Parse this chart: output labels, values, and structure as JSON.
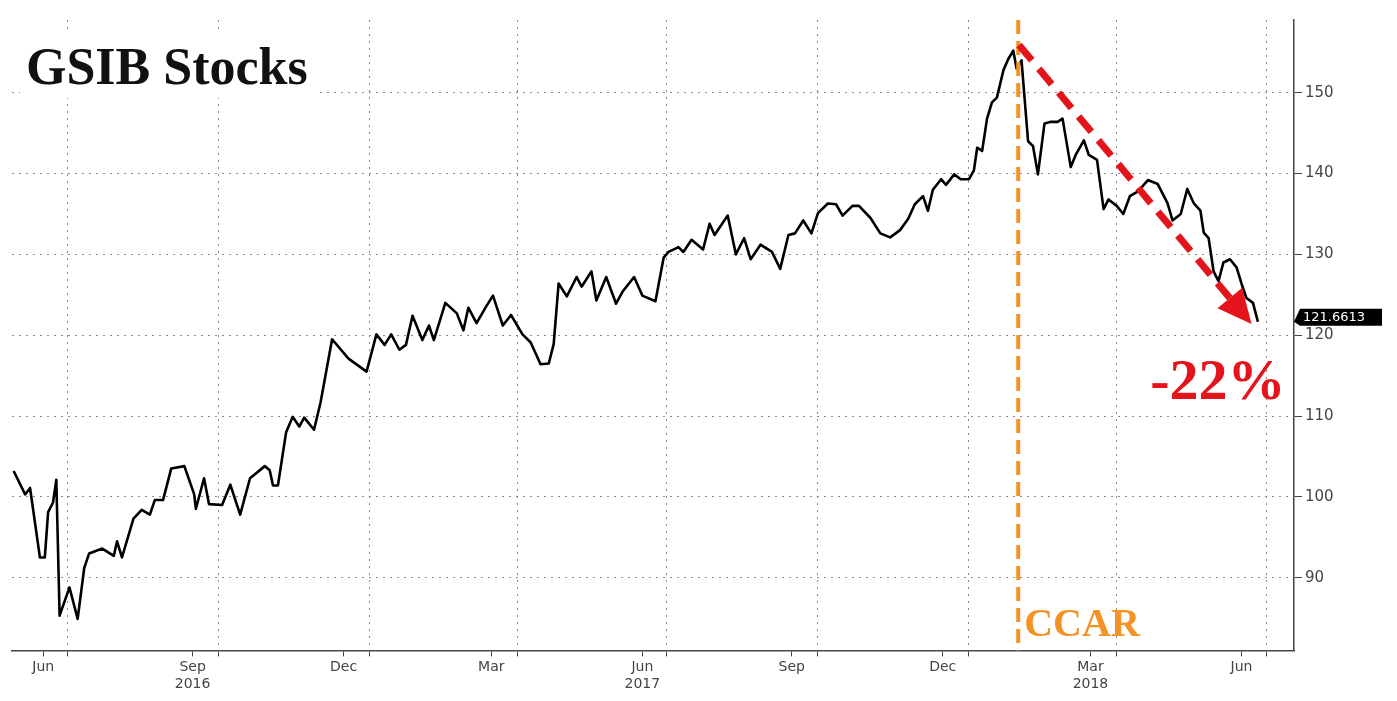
{
  "chart_data": {
    "type": "line",
    "title": "GSIB Stocks",
    "x": [
      "2016-05-29",
      "2016-06-05",
      "2016-06-08",
      "2016-06-14",
      "2016-06-17",
      "2016-06-19",
      "2016-06-22",
      "2016-06-24",
      "2016-06-26",
      "2016-07-02",
      "2016-07-07",
      "2016-07-11",
      "2016-07-14",
      "2016-07-22",
      "2016-07-29",
      "2016-07-31",
      "2016-08-03",
      "2016-08-10",
      "2016-08-15",
      "2016-08-20",
      "2016-08-23",
      "2016-08-28",
      "2016-09-02",
      "2016-09-10",
      "2016-09-16",
      "2016-09-17",
      "2016-09-22",
      "2016-09-25",
      "2016-10-03",
      "2016-10-08",
      "2016-10-14",
      "2016-10-20",
      "2016-10-29",
      "2016-11-01",
      "2016-11-03",
      "2016-11-06",
      "2016-11-11",
      "2016-11-15",
      "2016-11-19",
      "2016-11-22",
      "2016-11-28",
      "2016-12-02",
      "2016-12-09",
      "2016-12-19",
      "2016-12-30",
      "2017-01-05",
      "2017-01-10",
      "2017-01-14",
      "2017-01-19",
      "2017-01-23",
      "2017-01-27",
      "2017-02-02",
      "2017-02-06",
      "2017-02-09",
      "2017-02-16",
      "2017-02-23",
      "2017-02-27",
      "2017-03-02",
      "2017-03-07",
      "2017-03-13",
      "2017-03-17",
      "2017-03-23",
      "2017-03-28",
      "2017-04-04",
      "2017-04-09",
      "2017-04-15",
      "2017-04-20",
      "2017-04-23",
      "2017-04-26",
      "2017-05-01",
      "2017-05-07",
      "2017-05-10",
      "2017-05-16",
      "2017-05-19",
      "2017-05-25",
      "2017-05-31",
      "2017-06-04",
      "2017-06-11",
      "2017-06-16",
      "2017-06-24",
      "2017-06-29",
      "2017-07-02",
      "2017-07-08",
      "2017-07-11",
      "2017-07-16",
      "2017-07-23",
      "2017-07-27",
      "2017-07-30",
      "2017-08-07",
      "2017-08-12",
      "2017-08-17",
      "2017-08-21",
      "2017-08-27",
      "2017-09-03",
      "2017-09-08",
      "2017-09-13",
      "2017-09-17",
      "2017-09-22",
      "2017-09-27",
      "2017-10-01",
      "2017-10-07",
      "2017-10-12",
      "2017-10-16",
      "2017-10-22",
      "2017-10-26",
      "2017-11-02",
      "2017-11-08",
      "2017-11-14",
      "2017-11-20",
      "2017-11-25",
      "2017-11-29",
      "2017-12-04",
      "2017-12-07",
      "2017-12-10",
      "2017-12-15",
      "2017-12-18",
      "2017-12-23",
      "2017-12-27",
      "2018-01-01",
      "2018-01-04",
      "2018-01-06",
      "2018-01-09",
      "2018-01-12",
      "2018-01-15",
      "2018-01-18",
      "2018-01-22",
      "2018-01-25",
      "2018-01-28",
      "2018-01-30",
      "2018-02-02",
      "2018-02-06",
      "2018-02-09",
      "2018-02-12",
      "2018-02-16",
      "2018-02-20",
      "2018-02-24",
      "2018-02-27",
      "2018-03-04",
      "2018-03-07",
      "2018-03-12",
      "2018-03-15",
      "2018-03-20",
      "2018-03-24",
      "2018-03-27",
      "2018-04-01",
      "2018-04-05",
      "2018-04-09",
      "2018-04-14",
      "2018-04-20",
      "2018-04-26",
      "2018-05-02",
      "2018-05-05",
      "2018-05-10",
      "2018-05-14",
      "2018-05-18",
      "2018-05-22",
      "2018-05-24",
      "2018-05-27",
      "2018-05-30",
      "2018-06-02",
      "2018-06-05",
      "2018-06-09",
      "2018-06-13",
      "2018-06-16",
      "2018-06-19",
      "2018-06-23",
      "2018-06-26"
    ],
    "series": [
      {
        "color": "#000000",
        "values": [
          103.2,
          100.3,
          101.1,
          92.5,
          92.5,
          98.1,
          99.3,
          102.1,
          85.3,
          88.8,
          84.9,
          91.2,
          93.0,
          93.6,
          92.7,
          94.5,
          92.5,
          97.3,
          98.4,
          97.8,
          99.6,
          99.6,
          103.5,
          103.8,
          100.3,
          98.5,
          102.3,
          99.1,
          99.0,
          101.5,
          97.8,
          102.3,
          103.8,
          103.3,
          101.4,
          101.4,
          108.0,
          109.9,
          108.7,
          109.8,
          108.3,
          111.7,
          119.5,
          117.1,
          115.5,
          120.1,
          118.8,
          120.1,
          118.2,
          118.8,
          122.4,
          119.4,
          121.2,
          119.4,
          124.0,
          122.7,
          120.6,
          123.4,
          121.5,
          123.6,
          124.9,
          121.2,
          122.5,
          120.1,
          119.1,
          116.4,
          116.5,
          118.9,
          126.4,
          124.8,
          127.2,
          126.0,
          127.9,
          124.3,
          127.2,
          123.9,
          125.4,
          127.2,
          124.9,
          124.2,
          129.6,
          130.3,
          130.9,
          130.3,
          131.8,
          130.6,
          133.8,
          132.4,
          134.8,
          130.0,
          132.0,
          129.4,
          131.2,
          130.3,
          128.2,
          132.4,
          132.6,
          134.2,
          132.6,
          135.1,
          136.3,
          136.2,
          134.8,
          136.0,
          136.0,
          134.5,
          132.6,
          132.1,
          133.0,
          134.4,
          136.2,
          137.2,
          135.4,
          138.0,
          139.3,
          138.6,
          139.9,
          139.3,
          139.3,
          140.4,
          143.2,
          142.8,
          146.8,
          148.8,
          149.4,
          152.8,
          154.2,
          155.2,
          153.0,
          154.0,
          144.0,
          143.4,
          139.9,
          146.2,
          146.4,
          146.4,
          146.8,
          140.8,
          142.3,
          144.1,
          142.3,
          141.7,
          135.6,
          136.8,
          136.0,
          135.0,
          137.2,
          137.8,
          139.2,
          138.7,
          136.3,
          134.2,
          135.0,
          138.1,
          136.3,
          135.4,
          132.7,
          132.0,
          127.9,
          126.7,
          129.0,
          129.4,
          128.4,
          126.4,
          124.6,
          124.0,
          121.6613
        ]
      }
    ],
    "xlim": [
      "2016-05-28",
      "2018-07-18"
    ],
    "xticks": [
      {
        "value": "2016-06-16",
        "label": "Jun"
      },
      {
        "value": "2016-07-01",
        "label": null
      },
      {
        "value": "2016-09-15",
        "label": "Sep\n2016"
      },
      {
        "value": "2016-10-01",
        "label": null
      },
      {
        "value": "2016-12-16",
        "label": "Dec"
      },
      {
        "value": "2017-01-01",
        "label": null
      },
      {
        "value": "2017-03-16",
        "label": "Mar"
      },
      {
        "value": "2017-04-01",
        "label": null
      },
      {
        "value": "2017-06-16",
        "label": "Jun\n2017"
      },
      {
        "value": "2017-07-01",
        "label": null
      },
      {
        "value": "2017-09-15",
        "label": "Sep"
      },
      {
        "value": "2017-10-01",
        "label": null
      },
      {
        "value": "2017-12-16",
        "label": "Dec"
      },
      {
        "value": "2018-01-01",
        "label": null
      },
      {
        "value": "2018-03-16",
        "label": "Mar\n2018"
      },
      {
        "value": "2018-04-01",
        "label": null
      },
      {
        "value": "2018-06-16",
        "label": "Jun"
      },
      {
        "value": "2018-07-01",
        "label": null
      }
    ],
    "ylim": [
      81,
      159
    ],
    "yticks": [
      90,
      100,
      110,
      120,
      130,
      140,
      150
    ],
    "grid": true,
    "marker": "none",
    "line_style": "solid",
    "ref_lines": [
      {
        "axis": "x",
        "value": "2018-01-31",
        "label": "CCAR",
        "color": "#f39325",
        "line_style": "dashed"
      }
    ],
    "annotations": [
      "-22%",
      "121.6613"
    ]
  }
}
